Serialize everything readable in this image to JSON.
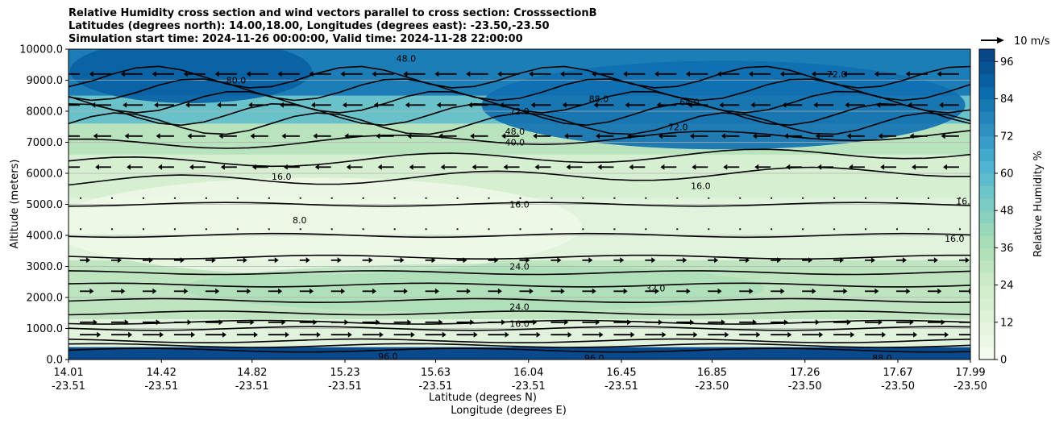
{
  "title_lines": [
    "Relative Humidity cross section and wind vectors parallel to cross section: CrosssectionB",
    "Latitudes (degrees north): 14.00,18.00, Longitudes (degrees east): -23.50,-23.50",
    "Simulation start time: 2024-11-26 00:00:00, Valid time: 2024-11-28 22:00:00"
  ],
  "chart_data": {
    "type": "heatmap",
    "description_kind": "filled contour cross section with line contours and wind vectors",
    "ylabel": "Altitude (meters)",
    "xlabel_line1": "Latitude (degrees N)",
    "xlabel_line2": "Longitude (degrees E)",
    "ylim": [
      0,
      10000
    ],
    "yticks": [
      "0.0",
      "1000.0",
      "2000.0",
      "3000.0",
      "4000.0",
      "5000.0",
      "6000.0",
      "7000.0",
      "8000.0",
      "9000.0",
      "10000.0"
    ],
    "xticks": [
      {
        "lat": "14.01",
        "lon": "-23.51"
      },
      {
        "lat": "14.42",
        "lon": "-23.51"
      },
      {
        "lat": "14.82",
        "lon": "-23.51"
      },
      {
        "lat": "15.23",
        "lon": "-23.51"
      },
      {
        "lat": "15.63",
        "lon": "-23.51"
      },
      {
        "lat": "16.04",
        "lon": "-23.51"
      },
      {
        "lat": "16.45",
        "lon": "-23.51"
      },
      {
        "lat": "16.85",
        "lon": "-23.50"
      },
      {
        "lat": "17.26",
        "lon": "-23.50"
      },
      {
        "lat": "17.67",
        "lon": "-23.50"
      },
      {
        "lat": "17.99",
        "lon": "-23.50"
      }
    ],
    "grid": true,
    "colorbar": {
      "label": "Relative Humidity %",
      "range": [
        0,
        100
      ],
      "ticks": [
        "0",
        "12",
        "24",
        "36",
        "48",
        "60",
        "72",
        "84",
        "96"
      ],
      "colors": [
        "#f7fcf0",
        "#e0f3db",
        "#ccebc5",
        "#a8ddb5",
        "#7bccc4",
        "#4eb3d3",
        "#2b8cbe",
        "#0868ac",
        "#084081"
      ]
    },
    "quiver_key": "10 m/s",
    "contour_labels": [
      {
        "text": "16.0",
        "alt": 5000,
        "lat": 16.0
      },
      {
        "text": "24.0",
        "alt": 3000,
        "lat": 16.0
      },
      {
        "text": "24.0",
        "alt": 1700,
        "lat": 16.0
      },
      {
        "text": "16.0",
        "alt": 1150,
        "lat": 16.0
      },
      {
        "text": "40.0",
        "alt": 7000,
        "lat": 15.98
      },
      {
        "text": "48.0",
        "alt": 7350,
        "lat": 15.98
      },
      {
        "text": "8.0",
        "alt": 4500,
        "lat": 15.03
      },
      {
        "text": "16.0",
        "alt": 5900,
        "lat": 14.95
      },
      {
        "text": "32.0",
        "alt": 2300,
        "lat": 16.6
      },
      {
        "text": "72.0",
        "alt": 8000,
        "lat": 16.0
      },
      {
        "text": "64.0",
        "alt": 8300,
        "lat": 16.75
      },
      {
        "text": "48.0",
        "alt": 9700,
        "lat": 15.5
      },
      {
        "text": "80.0",
        "alt": 9000,
        "lat": 14.75
      },
      {
        "text": "96.0",
        "alt": 100,
        "lat": 15.42
      },
      {
        "text": "96.0",
        "alt": 50,
        "lat": 16.33
      },
      {
        "text": "88.0",
        "alt": 50,
        "lat": 17.6
      },
      {
        "text": "16.0",
        "alt": 5100,
        "lat": 17.97
      },
      {
        "text": "16.0",
        "alt": 3900,
        "lat": 17.92
      },
      {
        "text": "16.0",
        "alt": 5600,
        "lat": 16.8
      },
      {
        "text": "72.0",
        "alt": 7500,
        "lat": 16.7
      },
      {
        "text": "88.0",
        "alt": 8400,
        "lat": 16.35
      },
      {
        "text": "72.0",
        "alt": 9200,
        "lat": 17.4
      }
    ]
  }
}
